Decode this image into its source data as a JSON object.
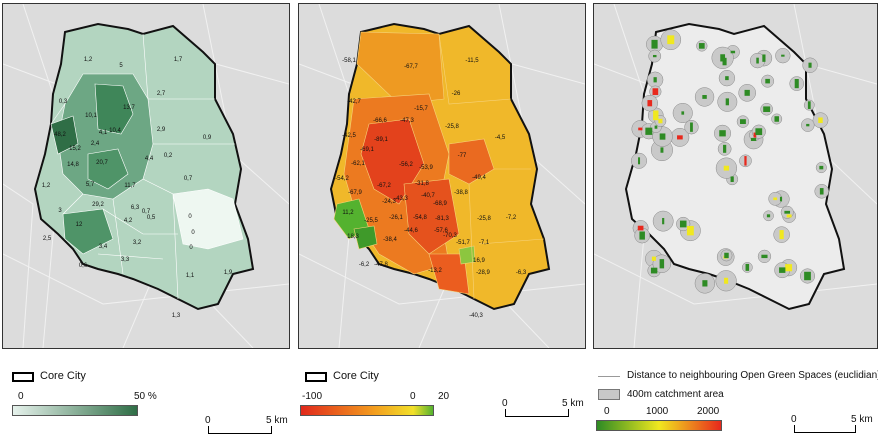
{
  "panels": {
    "share": {
      "labels": [
        "1,2",
        "5",
        "1,7",
        "0,3",
        "10,1",
        "13,7",
        "2,7",
        "48,2",
        "4,1",
        "10,4",
        "2,9",
        "0,9",
        "15,2",
        "2,4",
        "0,2",
        "14,8",
        "20,7",
        "4,4",
        "1,2",
        "5,7",
        "11,7",
        "0,7",
        "0",
        "3",
        "29,2",
        "6,3",
        "0,7",
        "4,2",
        "0,5",
        "2,5",
        "12",
        "3,2",
        "0",
        "0",
        "3,4",
        "3,3",
        "0,6",
        "1,1",
        "1,9",
        "1,3"
      ]
    },
    "change": {
      "labels": [
        "-58,1",
        "-67,7",
        "-11,5",
        "-42,7",
        "-26",
        "-15,7",
        "-42,5",
        "-66,6",
        "-47,3",
        "-25,8",
        "-4,5",
        "-69,1",
        "-89,1",
        "-77",
        "-62,1",
        "-56,2",
        "-53,9",
        "-49,4",
        "-54,2",
        "-67,2",
        "-31,8",
        "-38,8",
        "-43,3",
        "-40,7",
        "-67,9",
        "-25,5",
        "-24,3",
        "-68,9",
        "11,2",
        "-26,1",
        "-54,8",
        "-81,3",
        "-25,8",
        "-7,2",
        "18,3",
        "-44,6",
        "-70,3",
        "-7,1",
        "-38,4",
        "-57,6",
        "-51,7",
        "-6,2",
        "-47,8",
        "16,9",
        "-28,9",
        "-6,3",
        "-13,2",
        "-40,3"
      ]
    },
    "distance": {}
  },
  "legends": {
    "core_city_label": "Core City",
    "share": {
      "min": "0",
      "max": "50 %",
      "colors": [
        "#e6f2ec",
        "#2f6e46"
      ]
    },
    "change": {
      "min": "-100",
      "mid": "0",
      "max": "20",
      "colors": [
        "#e0281b",
        "#f39c1e",
        "#f2e02a",
        "#54b22f"
      ]
    },
    "distance": {
      "line_label": "Distance to neighbouring Open Green Spaces (euclidian)",
      "area_label": "400m catchment area",
      "ticks": [
        "0",
        "1000",
        "2000"
      ],
      "colors": [
        "#2e8b24",
        "#f0e81f",
        "#e8281c"
      ]
    },
    "scale_label": "5 km",
    "scale_zero": "0"
  }
}
